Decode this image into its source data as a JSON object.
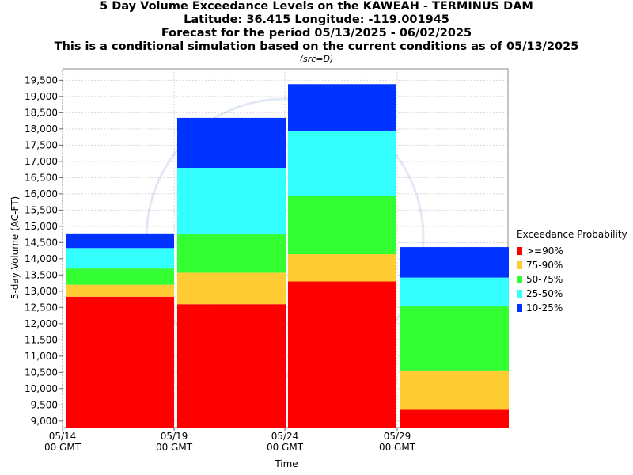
{
  "chart_data": {
    "type": "bar",
    "stacked": true,
    "title_lines": [
      "5 Day Volume Exceedance Levels on the KAWEAH - TERMINUS DAM",
      "Latitude: 36.415 Longitude: -119.001945",
      "Forecast for the period 05/13/2025 - 06/02/2025",
      "This is a conditional simulation based on the current conditions as of 05/13/2025"
    ],
    "subtitle": "(src=D)",
    "xlabel": "Time",
    "ylabel": "5-day Volume (AC-FT)",
    "ylim": [
      8800,
      19850
    ],
    "yticks": [
      9000,
      9500,
      10000,
      10500,
      11000,
      11500,
      12000,
      12500,
      13000,
      13500,
      14000,
      14500,
      15000,
      15500,
      16000,
      16500,
      17000,
      17500,
      18000,
      18500,
      19000,
      19500
    ],
    "xticks": [
      {
        "line1": "05/14",
        "line2": "00 GMT"
      },
      {
        "line1": "05/19",
        "line2": "00 GMT"
      },
      {
        "line1": "05/24",
        "line2": "00 GMT"
      },
      {
        "line1": "05/29",
        "line2": "00 GMT"
      }
    ],
    "grid": true,
    "legend": {
      "title": "Exceedance Probability",
      "placement": "right",
      "items": [
        {
          "label": ">=90%",
          "color": "#ff0000"
        },
        {
          "label": "75-90%",
          "color": "#ffcc33"
        },
        {
          "label": "50-75%",
          "color": "#33ff33"
        },
        {
          "label": "25-50%",
          "color": "#33ffff"
        },
        {
          "label": "10-25%",
          "color": "#0033ff"
        }
      ]
    },
    "bars": [
      {
        "x_index": 0,
        "levels": [
          12830,
          13200,
          13700,
          14330,
          14780
        ]
      },
      {
        "x_index": 1,
        "levels": [
          12600,
          13570,
          14750,
          16800,
          18340
        ]
      },
      {
        "x_index": 2,
        "levels": [
          13300,
          14140,
          15930,
          17930,
          19380
        ]
      },
      {
        "x_index": 3,
        "levels": [
          9350,
          10560,
          12530,
          13420,
          14360
        ]
      }
    ]
  }
}
